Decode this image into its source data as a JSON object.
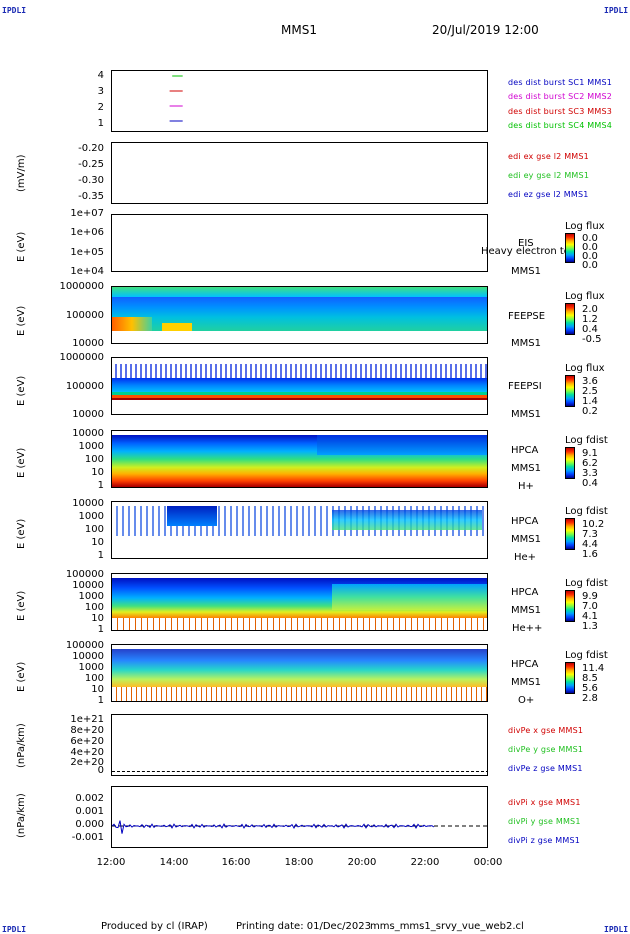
{
  "corners": {
    "top_left": "IPDLI",
    "top_right": "IPDLI",
    "bottom_left": "IPDLI",
    "bottom_right": "IPDLI"
  },
  "header": {
    "spacecraft": "MMS1",
    "datetime": "20/Jul/2019 12:00"
  },
  "footer": {
    "produced": "Produced by cl (IRAP)",
    "printing": "Printing date: 01/Dec/2023",
    "file": "mms_mms1_srvy_vue_web2.cl"
  },
  "colors": {
    "sc1": "#0000c0",
    "sc2": "#d000d0",
    "sc3": "#d00000",
    "sc4": "#00c000",
    "x": "#d00000",
    "y": "#20c020",
    "z": "#0000c0"
  },
  "chart_data": [
    {
      "type": "line",
      "id": "burst",
      "yticks": [
        "4",
        "3",
        "2",
        "1"
      ],
      "legend": [
        "des dist burst SC1 MMS1",
        "des dist burst SC2 MMS2",
        "des dist burst SC3 MMS3",
        "des dist burst SC4 MMS4"
      ],
      "series": [
        {
          "name": "des dist burst SC4 MMS4",
          "level": 4,
          "x": [
            "13:55",
            "14:15"
          ]
        },
        {
          "name": "des dist burst SC3 MMS3",
          "level": 3,
          "x": [
            "13:50",
            "14:15"
          ]
        },
        {
          "name": "des dist burst SC2 MMS2",
          "level": 2,
          "x": [
            "13:50",
            "14:15"
          ]
        },
        {
          "name": "des dist burst SC1 MMS1",
          "level": 1,
          "x": [
            "13:50",
            "14:15"
          ]
        }
      ]
    },
    {
      "type": "line",
      "id": "edi",
      "ylabel": "(mV/m)",
      "yticks": [
        "-0.20",
        "-0.25",
        "-0.30",
        "-0.35"
      ],
      "legend": [
        "edi ex gse l2 MMS1",
        "edi ey gse l2 MMS1",
        "edi ez gse l2 MMS1"
      ]
    },
    {
      "type": "heatmap",
      "id": "eis",
      "ylabel": "E (eV)",
      "yticks": [
        "1e+07",
        "1e+06",
        "1e+05",
        "1e+04"
      ],
      "right_labels": [
        "EIS",
        "MMS1"
      ],
      "overlay": "Heavy electron to",
      "colorbar": {
        "title": "Log flux",
        "values": [
          "0.0",
          "0.0",
          "0.0",
          "0.0"
        ]
      }
    },
    {
      "type": "heatmap",
      "id": "feepse",
      "ylabel": "E (eV)",
      "yticks": [
        "1000000",
        "100000",
        "10000"
      ],
      "right_labels": [
        "FEEPSE",
        "MMS1"
      ],
      "colorbar": {
        "title": "Log flux",
        "values": [
          "2.0",
          "1.2",
          "0.4",
          "-0.5"
        ]
      }
    },
    {
      "type": "heatmap",
      "id": "feepsi",
      "ylabel": "E (eV)",
      "yticks": [
        "1000000",
        "100000",
        "10000"
      ],
      "right_labels": [
        "FEEPSI",
        "MMS1"
      ],
      "colorbar": {
        "title": "Log flux",
        "values": [
          "3.6",
          "2.5",
          "1.4",
          "0.2"
        ]
      }
    },
    {
      "type": "heatmap",
      "id": "hpca_h",
      "ylabel": "E (eV)",
      "yticks": [
        "10000",
        "1000",
        "100",
        "10",
        "1"
      ],
      "right_labels": [
        "HPCA",
        "MMS1",
        "H+"
      ],
      "colorbar": {
        "title": "Log fdist",
        "values": [
          "9.1",
          "6.2",
          "3.3",
          "0.4"
        ]
      }
    },
    {
      "type": "heatmap",
      "id": "hpca_he",
      "ylabel": "E (eV)",
      "yticks": [
        "10000",
        "1000",
        "100",
        "10",
        "1"
      ],
      "right_labels": [
        "HPCA",
        "MMS1",
        "He+"
      ],
      "colorbar": {
        "title": "Log fdist",
        "values": [
          "10.2",
          "7.3",
          "4.4",
          "1.6"
        ]
      }
    },
    {
      "type": "heatmap",
      "id": "hpca_hepp",
      "ylabel": "E (eV)",
      "yticks": [
        "100000",
        "10000",
        "1000",
        "100",
        "10",
        "1"
      ],
      "right_labels": [
        "HPCA",
        "MMS1",
        "He++"
      ],
      "colorbar": {
        "title": "Log fdist",
        "values": [
          "9.9",
          "7.0",
          "4.1",
          "1.3"
        ]
      }
    },
    {
      "type": "heatmap",
      "id": "hpca_o",
      "ylabel": "E (eV)",
      "yticks": [
        "100000",
        "10000",
        "1000",
        "100",
        "10",
        "1"
      ],
      "right_labels": [
        "HPCA",
        "MMS1",
        "O+"
      ],
      "colorbar": {
        "title": "Log fdist",
        "values": [
          "11.4",
          "8.5",
          "5.6",
          "2.8"
        ]
      }
    },
    {
      "type": "line",
      "id": "divpe",
      "ylabel": "(nPa/km)",
      "yticks": [
        "1e+21",
        "8e+20",
        "6e+20",
        "4e+20",
        "2e+20",
        "0"
      ],
      "legend": [
        "divPe x gse MMS1",
        "divPe y gse MMS1",
        "divPe z gse MMS1"
      ]
    },
    {
      "type": "line",
      "id": "divpi",
      "ylabel": "(nPa/km)",
      "yticks": [
        "0.002",
        "0.001",
        "0.000",
        "-0.001"
      ],
      "legend": [
        "divPi x gse MMS1",
        "divPi y gse MMS1",
        "divPi z gse MMS1"
      ]
    }
  ],
  "xaxis": {
    "ticks": [
      "12:00",
      "14:00",
      "16:00",
      "18:00",
      "20:00",
      "22:00",
      "00:00"
    ]
  }
}
